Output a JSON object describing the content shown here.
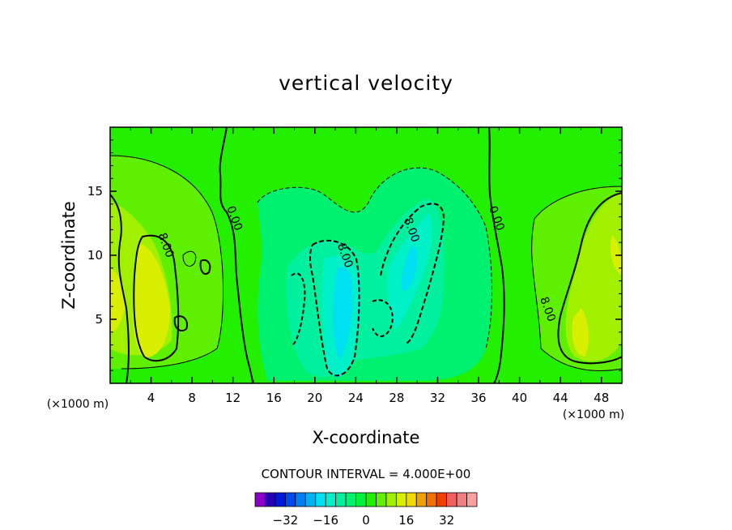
{
  "chart_data": {
    "type": "contour",
    "title": "vertical velocity",
    "xlabel": "X-coordinate",
    "ylabel": "Z-coordinate",
    "x_unit_label": "(×1000 m)",
    "x_unit_label_right": "(×1000 m)",
    "xlim": [
      0,
      50
    ],
    "ylim": [
      0,
      20
    ],
    "x_ticks": [
      4,
      8,
      12,
      16,
      20,
      24,
      28,
      32,
      36,
      40,
      44,
      48
    ],
    "x_tick_labels": [
      "4",
      "8",
      "12",
      "16",
      "20",
      "24",
      "28",
      "32",
      "36",
      "40",
      "44",
      "48"
    ],
    "y_ticks": [
      5,
      10,
      15
    ],
    "y_tick_labels": [
      "5",
      "10",
      "15"
    ],
    "contour_labels": [
      {
        "text": "0.00",
        "x": 12.2,
        "z": 12.9
      },
      {
        "text": "0.00",
        "x": 37.8,
        "z": 12.9
      },
      {
        "text": "8.00",
        "x": 5.5,
        "z": 10.8
      },
      {
        "text": "8.00",
        "x": 23.0,
        "z": 10.0
      },
      {
        "text": "8.00",
        "x": 29.5,
        "z": 12.0
      },
      {
        "text": "8.00",
        "x": 42.8,
        "z": 5.8
      }
    ],
    "contour_interval_text": "CONTOUR INTERVAL = 4.000E+00",
    "colorbar": {
      "tick_labels": [
        "−32",
        "−16",
        "0",
        "16",
        "32"
      ],
      "tick_values": [
        -32,
        -16,
        0,
        16,
        32
      ],
      "colors": [
        "#8a00c8",
        "#2800b4",
        "#0018d8",
        "#0048f0",
        "#0080f0",
        "#00b0f0",
        "#00e0f0",
        "#00f0c8",
        "#00f0a0",
        "#00f070",
        "#00f040",
        "#20f000",
        "#60f000",
        "#a0f000",
        "#d8f000",
        "#f0d800",
        "#f0a000",
        "#f07000",
        "#f04000",
        "#f06060",
        "#f08080",
        "#f8a0a0"
      ]
    }
  },
  "colors": {
    "background_field": "#22f000"
  }
}
